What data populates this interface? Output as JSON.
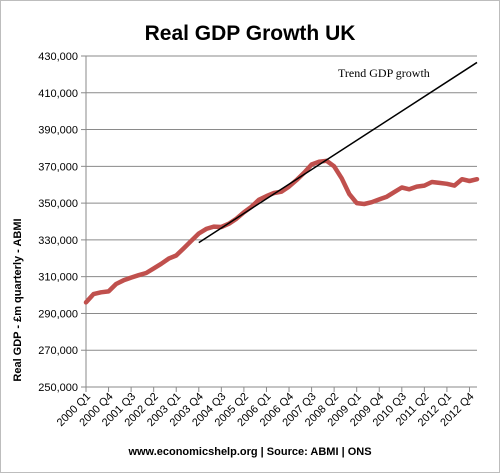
{
  "chart_data": {
    "type": "line",
    "title": "Real GDP Growth UK",
    "ylabel": "Real GDP - £m quarterly - ABMI",
    "xlabel": "",
    "ylim": [
      250000,
      430000
    ],
    "yticks": [
      "250,000",
      "270,000",
      "290,000",
      "310,000",
      "330,000",
      "350,000",
      "370,000",
      "390,000",
      "410,000",
      "430,000"
    ],
    "xtick_labels": [
      "2000 Q1",
      "2000 Q4",
      "2001 Q3",
      "2002 Q2",
      "2003 Q1",
      "2003 Q4",
      "2004 Q3",
      "2005 Q2",
      "2006 Q1",
      "2006 Q4",
      "2007 Q3",
      "2008 Q2",
      "2009 Q1",
      "2009 Q4",
      "2010 Q3",
      "2011 Q2",
      "2012 Q1",
      "2012 Q4"
    ],
    "grid": true,
    "series": [
      {
        "color": "#c0504d",
        "x": [
          "2000 Q1",
          "2000 Q2",
          "2000 Q3",
          "2000 Q4",
          "2001 Q1",
          "2001 Q2",
          "2001 Q3",
          "2001 Q4",
          "2002 Q1",
          "2002 Q2",
          "2002 Q3",
          "2002 Q4",
          "2003 Q1",
          "2003 Q2",
          "2003 Q3",
          "2003 Q4",
          "2004 Q1",
          "2004 Q2",
          "2004 Q3",
          "2004 Q4",
          "2005 Q1",
          "2005 Q2",
          "2005 Q3",
          "2005 Q4",
          "2006 Q1",
          "2006 Q2",
          "2006 Q3",
          "2006 Q4",
          "2007 Q1",
          "2007 Q2",
          "2007 Q3",
          "2007 Q4",
          "2008 Q1",
          "2008 Q2",
          "2008 Q3",
          "2008 Q4",
          "2009 Q1",
          "2009 Q2",
          "2009 Q3",
          "2009 Q4",
          "2010 Q1",
          "2010 Q2",
          "2010 Q3",
          "2010 Q4",
          "2011 Q1",
          "2011 Q2",
          "2011 Q3",
          "2011 Q4",
          "2012 Q1",
          "2012 Q2",
          "2012 Q3",
          "2012 Q4",
          "2013 Q1"
        ],
        "values": [
          296000,
          300500,
          301500,
          302000,
          306000,
          308000,
          309500,
          310800,
          312000,
          314500,
          317000,
          319800,
          321500,
          325500,
          329500,
          333500,
          336000,
          337200,
          337000,
          338800,
          341500,
          345000,
          348000,
          351800,
          353800,
          355500,
          356200,
          359000,
          362500,
          366500,
          371000,
          372500,
          373000,
          370000,
          363500,
          355000,
          350000,
          349500,
          350500,
          352000,
          353500,
          356000,
          358500,
          357500,
          359000,
          359500,
          361500,
          361000,
          360500,
          359500,
          363000,
          362000,
          363000
        ]
      }
    ],
    "trend": {
      "label": "Trend GDP growth",
      "color": "#000000",
      "start": {
        "x": "2003 Q4",
        "y": 328500
      },
      "end": {
        "x": "2013 Q1",
        "y": 426500
      }
    }
  },
  "footer_text": "www.economicshelp.org | Source: ABMI | ONS"
}
